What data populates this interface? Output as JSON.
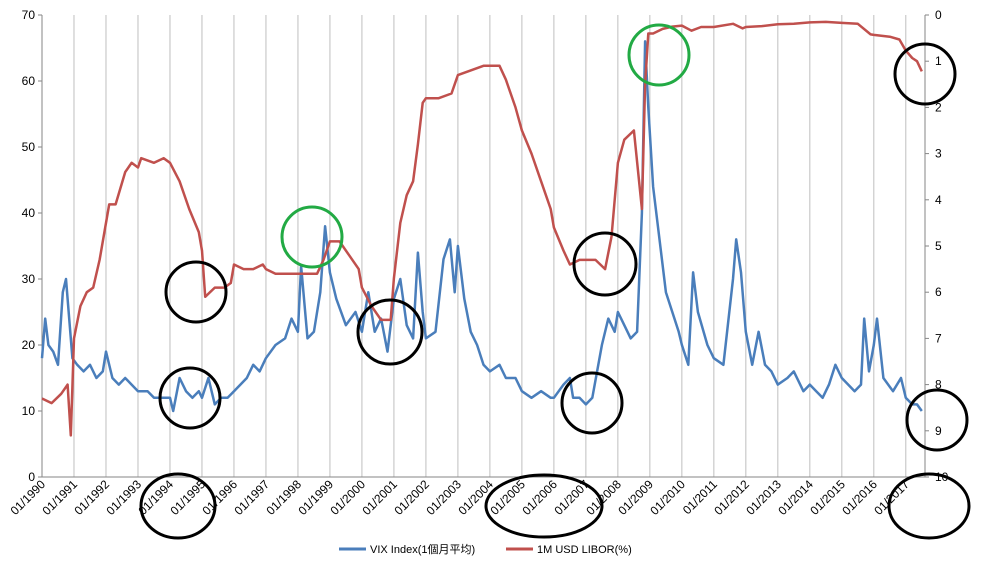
{
  "chart_data": {
    "type": "line",
    "y_left_ticks": [
      "0",
      "10",
      "20",
      "30",
      "40",
      "50",
      "60",
      "70"
    ],
    "y_right_ticks": [
      "0",
      "1",
      "2",
      "3",
      "4",
      "5",
      "6",
      "7",
      "8",
      "9",
      "10"
    ],
    "y_left_range": [
      0,
      70
    ],
    "y_right_range": [
      10,
      0
    ],
    "x_range": [
      1990.0,
      2017.6
    ],
    "x_tick_labels": [
      "01/1990",
      "01/1991",
      "01/1992",
      "01/1993",
      "01/1994",
      "01/1995",
      "01/1996",
      "01/1997",
      "01/1998",
      "01/1999",
      "01/2000",
      "01/2001",
      "01/2002",
      "01/2003",
      "01/2004",
      "01/2005",
      "01/2006",
      "01/2007",
      "01/2008",
      "01/2009",
      "01/2010",
      "01/2011",
      "01/2012",
      "01/2013",
      "01/2014",
      "01/2015",
      "01/2016",
      "01/2017"
    ],
    "grid": "vertical",
    "legend_position": "bottom",
    "series": [
      {
        "name": "VIX Index(1個月平均)",
        "axis": "left",
        "color": "#4a7ebb",
        "points": [
          [
            1990.0,
            18
          ],
          [
            1990.1,
            24
          ],
          [
            1990.2,
            20
          ],
          [
            1990.35,
            19
          ],
          [
            1990.5,
            17
          ],
          [
            1990.65,
            28
          ],
          [
            1990.75,
            30
          ],
          [
            1990.85,
            24
          ],
          [
            1990.95,
            18
          ],
          [
            1991.1,
            17
          ],
          [
            1991.3,
            16
          ],
          [
            1991.5,
            17
          ],
          [
            1991.7,
            15
          ],
          [
            1991.9,
            16
          ],
          [
            1992.0,
            19
          ],
          [
            1992.2,
            15
          ],
          [
            1992.4,
            14
          ],
          [
            1992.6,
            15
          ],
          [
            1992.8,
            14
          ],
          [
            1993.0,
            13
          ],
          [
            1993.3,
            13
          ],
          [
            1993.5,
            12
          ],
          [
            1993.8,
            12
          ],
          [
            1994.0,
            12
          ],
          [
            1994.1,
            10
          ],
          [
            1994.3,
            15
          ],
          [
            1994.5,
            13
          ],
          [
            1994.7,
            12
          ],
          [
            1994.9,
            13
          ],
          [
            1995.0,
            12
          ],
          [
            1995.2,
            15
          ],
          [
            1995.4,
            11
          ],
          [
            1995.6,
            12
          ],
          [
            1995.8,
            12
          ],
          [
            1996.0,
            13
          ],
          [
            1996.2,
            14
          ],
          [
            1996.4,
            15
          ],
          [
            1996.6,
            17
          ],
          [
            1996.8,
            16
          ],
          [
            1997.0,
            18
          ],
          [
            1997.3,
            20
          ],
          [
            1997.6,
            21
          ],
          [
            1997.8,
            24
          ],
          [
            1998.0,
            22
          ],
          [
            1998.1,
            32
          ],
          [
            1998.3,
            21
          ],
          [
            1998.5,
            22
          ],
          [
            1998.7,
            28
          ],
          [
            1998.85,
            38
          ],
          [
            1999.0,
            31
          ],
          [
            1999.2,
            27
          ],
          [
            1999.5,
            23
          ],
          [
            1999.8,
            25
          ],
          [
            2000.0,
            22
          ],
          [
            2000.2,
            28
          ],
          [
            2000.4,
            22
          ],
          [
            2000.6,
            24
          ],
          [
            2000.8,
            19
          ],
          [
            2001.0,
            27
          ],
          [
            2001.2,
            30
          ],
          [
            2001.4,
            23
          ],
          [
            2001.6,
            21
          ],
          [
            2001.75,
            34
          ],
          [
            2001.9,
            25
          ],
          [
            2002.0,
            21
          ],
          [
            2002.3,
            22
          ],
          [
            2002.55,
            33
          ],
          [
            2002.75,
            36
          ],
          [
            2002.9,
            28
          ],
          [
            2003.0,
            35
          ],
          [
            2003.2,
            27
          ],
          [
            2003.4,
            22
          ],
          [
            2003.6,
            20
          ],
          [
            2003.8,
            17
          ],
          [
            2004.0,
            16
          ],
          [
            2004.3,
            17
          ],
          [
            2004.5,
            15
          ],
          [
            2004.8,
            15
          ],
          [
            2005.0,
            13
          ],
          [
            2005.3,
            12
          ],
          [
            2005.6,
            13
          ],
          [
            2005.9,
            12
          ],
          [
            2006.0,
            12
          ],
          [
            2006.3,
            14
          ],
          [
            2006.5,
            15
          ],
          [
            2006.6,
            12
          ],
          [
            2006.8,
            12
          ],
          [
            2007.0,
            11
          ],
          [
            2007.2,
            12
          ],
          [
            2007.5,
            20
          ],
          [
            2007.7,
            24
          ],
          [
            2007.9,
            22
          ],
          [
            2008.0,
            25
          ],
          [
            2008.2,
            23
          ],
          [
            2008.4,
            21
          ],
          [
            2008.6,
            22
          ],
          [
            2008.75,
            40
          ],
          [
            2008.85,
            66
          ],
          [
            2008.95,
            56
          ],
          [
            2009.1,
            44
          ],
          [
            2009.3,
            36
          ],
          [
            2009.5,
            28
          ],
          [
            2009.7,
            25
          ],
          [
            2009.9,
            22
          ],
          [
            2010.0,
            20
          ],
          [
            2010.2,
            17
          ],
          [
            2010.35,
            31
          ],
          [
            2010.5,
            25
          ],
          [
            2010.8,
            20
          ],
          [
            2011.0,
            18
          ],
          [
            2011.3,
            17
          ],
          [
            2011.6,
            30
          ],
          [
            2011.7,
            36
          ],
          [
            2011.85,
            31
          ],
          [
            2012.0,
            22
          ],
          [
            2012.2,
            17
          ],
          [
            2012.4,
            22
          ],
          [
            2012.6,
            17
          ],
          [
            2012.8,
            16
          ],
          [
            2013.0,
            14
          ],
          [
            2013.3,
            15
          ],
          [
            2013.5,
            16
          ],
          [
            2013.8,
            13
          ],
          [
            2014.0,
            14
          ],
          [
            2014.2,
            13
          ],
          [
            2014.4,
            12
          ],
          [
            2014.6,
            14
          ],
          [
            2014.8,
            17
          ],
          [
            2015.0,
            15
          ],
          [
            2015.2,
            14
          ],
          [
            2015.4,
            13
          ],
          [
            2015.6,
            14
          ],
          [
            2015.7,
            24
          ],
          [
            2015.85,
            16
          ],
          [
            2016.0,
            20
          ],
          [
            2016.1,
            24
          ],
          [
            2016.3,
            15
          ],
          [
            2016.6,
            13
          ],
          [
            2016.85,
            15
          ],
          [
            2017.0,
            12
          ],
          [
            2017.2,
            11
          ],
          [
            2017.35,
            11
          ],
          [
            2017.5,
            10
          ]
        ]
      },
      {
        "name": "1M USD LIBOR(%)",
        "axis": "right",
        "color": "#c0504d",
        "points": [
          [
            1990.0,
            8.3
          ],
          [
            1990.3,
            8.4
          ],
          [
            1990.6,
            8.2
          ],
          [
            1990.8,
            8.0
          ],
          [
            1990.9,
            9.1
          ],
          [
            1991.0,
            7.0
          ],
          [
            1991.2,
            6.3
          ],
          [
            1991.4,
            6.0
          ],
          [
            1991.6,
            5.9
          ],
          [
            1991.8,
            5.3
          ],
          [
            1992.0,
            4.5
          ],
          [
            1992.1,
            4.1
          ],
          [
            1992.3,
            4.1
          ],
          [
            1992.6,
            3.4
          ],
          [
            1992.8,
            3.2
          ],
          [
            1993.0,
            3.3
          ],
          [
            1993.1,
            3.1
          ],
          [
            1993.5,
            3.2
          ],
          [
            1993.8,
            3.1
          ],
          [
            1994.0,
            3.2
          ],
          [
            1994.3,
            3.6
          ],
          [
            1994.6,
            4.2
          ],
          [
            1994.9,
            4.7
          ],
          [
            1995.0,
            5.1
          ],
          [
            1995.1,
            6.1
          ],
          [
            1995.4,
            5.9
          ],
          [
            1995.7,
            5.9
          ],
          [
            1995.9,
            5.8
          ],
          [
            1996.0,
            5.4
          ],
          [
            1996.3,
            5.5
          ],
          [
            1996.6,
            5.5
          ],
          [
            1996.9,
            5.4
          ],
          [
            1997.0,
            5.5
          ],
          [
            1997.3,
            5.6
          ],
          [
            1997.6,
            5.6
          ],
          [
            1997.9,
            5.6
          ],
          [
            1998.0,
            5.6
          ],
          [
            1998.3,
            5.6
          ],
          [
            1998.6,
            5.6
          ],
          [
            1998.8,
            5.3
          ],
          [
            1999.0,
            4.9
          ],
          [
            1999.3,
            4.9
          ],
          [
            1999.6,
            5.2
          ],
          [
            1999.9,
            5.5
          ],
          [
            2000.0,
            5.9
          ],
          [
            2000.3,
            6.3
          ],
          [
            2000.6,
            6.6
          ],
          [
            2000.9,
            6.6
          ],
          [
            2001.0,
            5.7
          ],
          [
            2001.2,
            4.5
          ],
          [
            2001.4,
            3.9
          ],
          [
            2001.6,
            3.6
          ],
          [
            2001.75,
            2.8
          ],
          [
            2001.9,
            1.9
          ],
          [
            2002.0,
            1.8
          ],
          [
            2002.4,
            1.8
          ],
          [
            2002.8,
            1.7
          ],
          [
            2002.95,
            1.4
          ],
          [
            2003.0,
            1.3
          ],
          [
            2003.4,
            1.2
          ],
          [
            2003.8,
            1.1
          ],
          [
            2004.0,
            1.1
          ],
          [
            2004.3,
            1.1
          ],
          [
            2004.5,
            1.4
          ],
          [
            2004.8,
            2.0
          ],
          [
            2005.0,
            2.5
          ],
          [
            2005.3,
            3.0
          ],
          [
            2005.6,
            3.6
          ],
          [
            2005.9,
            4.2
          ],
          [
            2006.0,
            4.6
          ],
          [
            2006.3,
            5.1
          ],
          [
            2006.5,
            5.4
          ],
          [
            2006.8,
            5.3
          ],
          [
            2007.0,
            5.3
          ],
          [
            2007.3,
            5.3
          ],
          [
            2007.6,
            5.5
          ],
          [
            2007.8,
            4.8
          ],
          [
            2008.0,
            3.2
          ],
          [
            2008.2,
            2.7
          ],
          [
            2008.5,
            2.5
          ],
          [
            2008.75,
            4.2
          ],
          [
            2008.85,
            1.5
          ],
          [
            2008.95,
            0.4
          ],
          [
            2009.1,
            0.4
          ],
          [
            2009.4,
            0.3
          ],
          [
            2009.7,
            0.25
          ],
          [
            2010.0,
            0.23
          ],
          [
            2010.3,
            0.34
          ],
          [
            2010.6,
            0.26
          ],
          [
            2011.0,
            0.26
          ],
          [
            2011.6,
            0.19
          ],
          [
            2011.9,
            0.29
          ],
          [
            2012.0,
            0.26
          ],
          [
            2012.5,
            0.24
          ],
          [
            2013.0,
            0.2
          ],
          [
            2013.5,
            0.19
          ],
          [
            2014.0,
            0.16
          ],
          [
            2014.5,
            0.15
          ],
          [
            2015.0,
            0.17
          ],
          [
            2015.5,
            0.19
          ],
          [
            2015.9,
            0.42
          ],
          [
            2016.0,
            0.43
          ],
          [
            2016.5,
            0.47
          ],
          [
            2016.8,
            0.53
          ],
          [
            2017.0,
            0.77
          ],
          [
            2017.2,
            0.93
          ],
          [
            2017.35,
            1.0
          ],
          [
            2017.5,
            1.22
          ]
        ]
      }
    ],
    "annotations": [
      "black circle",
      "black circle",
      "black circle",
      "black circle",
      "black circle",
      "black circle",
      "black circle",
      "black circle",
      "green circle",
      "green circle"
    ]
  }
}
